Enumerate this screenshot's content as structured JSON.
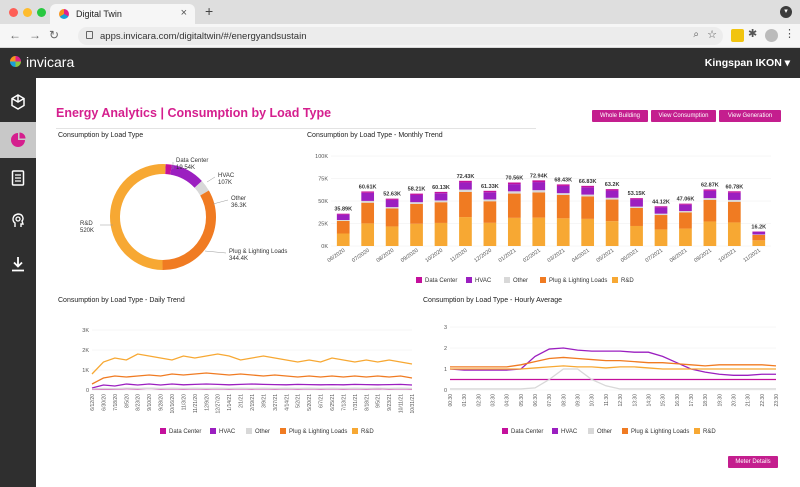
{
  "browser": {
    "tab_title": "Digital Twin",
    "tab_close": "×",
    "new_tab": "+",
    "url": "apps.invicara.com/digitaltwin/#/energyandsustain",
    "menu": "⋮"
  },
  "app": {
    "brand": "invicara",
    "user_menu": "Kingspan IKON ▾"
  },
  "page": {
    "title": "Energy Analytics",
    "title_separator": "|",
    "subtitle": "Consumption by Load Type",
    "buttons": [
      "Whole Building",
      "View Consumption",
      "View Generation"
    ],
    "meter_button": "Meter Details"
  },
  "colors": {
    "accent": "#c41e8e",
    "data_center": "#c4109c",
    "hvac": "#9b1fc0",
    "other": "#d8d8d8",
    "plug": "#f07b22",
    "rd": "#f7a833"
  },
  "panels": {
    "donut_title": "Consumption by Load Type",
    "monthly_title": "Consumption by Load Type - Monthly Trend",
    "daily_title": "Consumption by Load Type - Daily Trend",
    "hourly_title": "Consumption by Load Type - Hourly Average"
  },
  "legend": [
    "Data Center",
    "HVAC",
    "Other",
    "Plug & Lighting Loads",
    "R&D"
  ],
  "chart_data": [
    {
      "type": "pie",
      "categories": [
        "Data Center",
        "HVAC",
        "Other",
        "Plug & Lighting Loads",
        "R&D"
      ],
      "values": [
        19.54,
        107,
        36.3,
        344.4,
        520
      ],
      "labels": [
        "19.54K",
        "107K",
        "36.3K",
        "344.4K",
        "520K"
      ]
    },
    {
      "type": "bar",
      "categories": [
        "06/2020",
        "07/2020",
        "08/2020",
        "09/2020",
        "10/2020",
        "11/2020",
        "12/2020",
        "01/2021",
        "02/2021",
        "03/2021",
        "04/2021",
        "05/2021",
        "06/2021",
        "07/2021",
        "08/2021",
        "09/2021",
        "10/2021",
        "11/2021"
      ],
      "totals": [
        35.89,
        60.61,
        52.63,
        58.21,
        60.13,
        72.43,
        61.33,
        70.56,
        72.94,
        68.43,
        66.83,
        63.2,
        53.15,
        44.12,
        47.06,
        62.87,
        60.78,
        16.2
      ],
      "total_labels": [
        "35.89K",
        "60.61K",
        "52.63K",
        "58.21K",
        "60.13K",
        "72.43K",
        "61.33K",
        "70.56K",
        "72.94K",
        "68.43K",
        "66.83K",
        "63.2K",
        "53.15K",
        "44.12K",
        "47.06K",
        "62.87K",
        "60.78K",
        "16.2K"
      ],
      "series": [
        {
          "name": "Data Center",
          "values": [
            1,
            1.5,
            1.4,
            1.5,
            1.5,
            1.8,
            1.6,
            1.8,
            1.9,
            1.7,
            1.7,
            1.6,
            1.4,
            1.2,
            1.2,
            1.6,
            1.6,
            0.4
          ]
        },
        {
          "name": "HVAC",
          "values": [
            6,
            9,
            8,
            8,
            8,
            8,
            8,
            8,
            9,
            8,
            8,
            8,
            8,
            7,
            7,
            8,
            8,
            3
          ]
        },
        {
          "name": "Other",
          "values": [
            1,
            2,
            1.5,
            2,
            2,
            2.5,
            2,
            2.5,
            2.5,
            2,
            2,
            2,
            1.5,
            1.5,
            1.5,
            2,
            2,
            0.5
          ]
        },
        {
          "name": "Plug & Lighting Loads",
          "values": [
            14,
            23,
            20,
            22,
            23,
            28,
            24,
            27,
            28,
            26,
            25,
            24,
            20,
            16,
            18,
            24,
            23,
            6
          ]
        },
        {
          "name": "R&D",
          "values": [
            13.89,
            25.11,
            21.73,
            24.71,
            25.63,
            32.13,
            25.73,
            31.26,
            31.54,
            30.73,
            30.13,
            27.6,
            22.25,
            18.42,
            19.36,
            27.27,
            26.18,
            6.3
          ]
        }
      ],
      "y_ticks": [
        "0K",
        "25K",
        "50K",
        "75K",
        "100K"
      ],
      "ylim": [
        0,
        100
      ]
    },
    {
      "type": "line",
      "x_ticks": [
        "6/12/20",
        "6/30/20",
        "7/18/20",
        "8/5/20",
        "8/23/20",
        "9/10/20",
        "9/28/20",
        "10/16/20",
        "11/3/20",
        "11/21/20",
        "12/9/20",
        "12/27/20",
        "1/14/21",
        "2/1/21",
        "2/19/21",
        "3/9/21",
        "3/27/21",
        "4/14/21",
        "5/2/21",
        "5/20/21",
        "6/7/21",
        "6/25/21",
        "7/13/21",
        "7/31/21",
        "8/18/21",
        "9/5/21",
        "9/23/21",
        "10/11/21",
        "10/31/21"
      ],
      "y_ticks": [
        "0",
        "1K",
        "2K",
        "3K"
      ],
      "ylim": [
        0,
        3000
      ],
      "series": [
        {
          "name": "Data Center",
          "values": [
            40,
            60,
            50,
            70,
            60,
            80,
            60,
            70,
            60,
            70,
            60,
            70,
            60,
            70,
            60,
            70,
            60,
            70,
            60,
            70,
            60,
            70,
            60,
            70,
            60,
            70,
            60,
            70,
            60
          ]
        },
        {
          "name": "HVAC",
          "values": [
            100,
            250,
            200,
            300,
            250,
            300,
            250,
            300,
            260,
            280,
            300,
            280,
            260,
            280,
            300,
            280,
            270,
            260,
            280,
            270,
            260,
            270,
            260,
            280,
            270,
            260,
            270,
            280,
            250
          ]
        },
        {
          "name": "Other",
          "values": [
            50,
            80,
            70,
            90,
            80,
            90,
            80,
            90,
            80,
            90,
            80,
            90,
            80,
            90,
            80,
            90,
            80,
            90,
            80,
            90,
            80,
            90,
            80,
            90,
            80,
            90,
            80,
            90,
            80
          ]
        },
        {
          "name": "Plug & Lighting Loads",
          "values": [
            300,
            600,
            700,
            650,
            700,
            750,
            700,
            800,
            750,
            800,
            850,
            800,
            750,
            800,
            750,
            700,
            750,
            700,
            650,
            700,
            650,
            700,
            650,
            700,
            650,
            700,
            650,
            700,
            600
          ]
        },
        {
          "name": "R&D",
          "values": [
            800,
            1400,
            1600,
            1500,
            1800,
            1700,
            1600,
            1500,
            1700,
            1600,
            1700,
            1800,
            1700,
            1500,
            1600,
            1700,
            1600,
            1500,
            1400,
            1500,
            1400,
            1600,
            1500,
            1400,
            1500,
            1400,
            1500,
            1400,
            1300
          ]
        }
      ]
    },
    {
      "type": "line",
      "x_ticks": [
        "00:30",
        "01:30",
        "02:30",
        "03:30",
        "04:30",
        "05:30",
        "06:30",
        "07:30",
        "08:30",
        "09:30",
        "10:30",
        "11:30",
        "12:30",
        "13:30",
        "14:30",
        "15:30",
        "16:30",
        "17:30",
        "18:30",
        "19:30",
        "20:30",
        "21:30",
        "22:30",
        "23:30"
      ],
      "y_ticks": [
        "0",
        "1",
        "2",
        "3"
      ],
      "ylim": [
        0,
        3
      ],
      "series": [
        {
          "name": "Data Center",
          "values": [
            0.5,
            0.5,
            0.5,
            0.5,
            0.5,
            0.5,
            0.5,
            0.5,
            0.5,
            0.5,
            0.5,
            0.5,
            0.5,
            0.5,
            0.5,
            0.5,
            0.5,
            0.5,
            0.5,
            0.5,
            0.5,
            0.5,
            0.5,
            0.5
          ]
        },
        {
          "name": "HVAC",
          "values": [
            1.0,
            0.95,
            0.95,
            0.95,
            0.95,
            1.0,
            1.6,
            1.95,
            2.0,
            1.9,
            1.85,
            1.85,
            1.85,
            1.8,
            1.8,
            1.6,
            1.3,
            1.0,
            0.85,
            0.75,
            0.7,
            0.7,
            0.75,
            0.75
          ]
        },
        {
          "name": "Other",
          "values": [
            0.05,
            0.05,
            0.05,
            0.05,
            0.05,
            0.05,
            0.1,
            0.5,
            1.0,
            1.0,
            0.5,
            0.2,
            0.05,
            0.05,
            0.05,
            0.05,
            0.05,
            0.05,
            0.05,
            0.05,
            0.05,
            0.05,
            0.05,
            0.05
          ]
        },
        {
          "name": "Plug & Lighting Loads",
          "values": [
            1.1,
            1.1,
            1.1,
            1.1,
            1.1,
            1.2,
            1.35,
            1.5,
            1.55,
            1.5,
            1.45,
            1.4,
            1.4,
            1.35,
            1.3,
            1.3,
            1.25,
            1.2,
            1.15,
            1.2,
            1.2,
            1.2,
            1.2,
            1.15
          ]
        },
        {
          "name": "R&D",
          "values": [
            1.0,
            1.0,
            1.0,
            1.0,
            1.0,
            1.0,
            1.05,
            1.1,
            1.15,
            1.1,
            1.1,
            1.05,
            1.1,
            1.1,
            1.05,
            1.0,
            1.0,
            1.0,
            1.0,
            1.0,
            1.0,
            1.0,
            1.0,
            1.0
          ]
        }
      ]
    }
  ]
}
